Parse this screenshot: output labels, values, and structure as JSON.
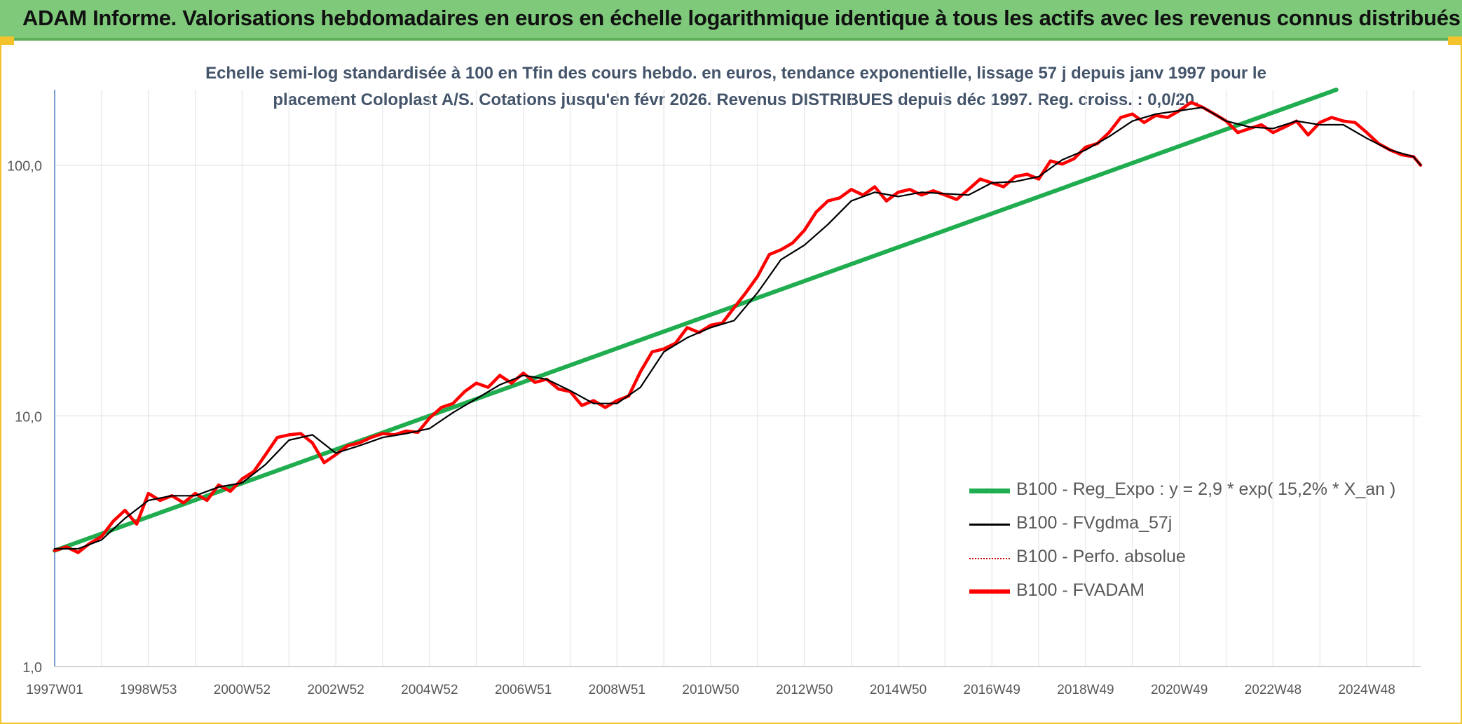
{
  "header": {
    "title": "ADAM Informe. Valorisations hebdomadaires en euros en échelle logarithmique identique à tous les actifs avec les revenus connus distribués"
  },
  "chart_data": {
    "type": "line",
    "title_lines": [
      "Echelle semi-log standardisée à 100 en Tfin des cours hebdo. en euros, tendance exponentielle, lissage 57 j depuis janv 1997 pour le",
      "placement Coloplast A/S. Cotations jusqu'en févr 2026. Revenus DISTRIBUES depuis déc 1997. Reg. croiss. : 0,0/20."
    ],
    "y_scale": "log",
    "ylim": [
      1,
      200
    ],
    "y_ticks": [
      {
        "value": 1,
        "label": "1,0"
      },
      {
        "value": 10,
        "label": "10,0"
      },
      {
        "value": 100,
        "label": "100,0"
      }
    ],
    "xlim": [
      1997.0,
      2026.15
    ],
    "x_ticks": [
      {
        "value": 1997.0,
        "label": "1997W01"
      },
      {
        "value": 1999.0,
        "label": "1998W53"
      },
      {
        "value": 2001.0,
        "label": "2000W52"
      },
      {
        "value": 2003.0,
        "label": "2002W52"
      },
      {
        "value": 2005.0,
        "label": "2004W52"
      },
      {
        "value": 2007.0,
        "label": "2006W51"
      },
      {
        "value": 2009.0,
        "label": "2008W51"
      },
      {
        "value": 2011.0,
        "label": "2010W50"
      },
      {
        "value": 2013.0,
        "label": "2012W50"
      },
      {
        "value": 2015.0,
        "label": "2014W50"
      },
      {
        "value": 2017.0,
        "label": "2016W49"
      },
      {
        "value": 2019.0,
        "label": "2018W49"
      },
      {
        "value": 2021.0,
        "label": "2020W49"
      },
      {
        "value": 2023.0,
        "label": "2022W48"
      },
      {
        "value": 2025.0,
        "label": "2024W48"
      }
    ],
    "grid": true,
    "legend_position": "bottom-right",
    "series": [
      {
        "name": "B100 - Reg_Expo : y = 2,9 * exp( 15,2% *  X_an )",
        "color": "#1fad4f",
        "style": "solid-thick",
        "x": [
          1997.0,
          2024.35
        ],
        "y": [
          2.9,
          200
        ]
      },
      {
        "name": "B100 - FVgdma_57j",
        "color": "#000000",
        "style": "solid-thin",
        "x": [
          1997.0,
          1997.5,
          1998.0,
          1998.5,
          1999.0,
          1999.5,
          2000.0,
          2000.5,
          2001.0,
          2001.5,
          2002.0,
          2002.5,
          2003.0,
          2003.5,
          2004.0,
          2004.5,
          2005.0,
          2005.5,
          2006.0,
          2006.5,
          2007.0,
          2007.5,
          2008.0,
          2008.5,
          2009.0,
          2009.5,
          2010.0,
          2010.5,
          2011.0,
          2011.5,
          2012.0,
          2012.5,
          2013.0,
          2013.5,
          2014.0,
          2014.5,
          2015.0,
          2015.5,
          2016.0,
          2016.5,
          2017.0,
          2017.5,
          2018.0,
          2018.5,
          2019.0,
          2019.5,
          2020.0,
          2020.5,
          2021.0,
          2021.5,
          2022.0,
          2022.5,
          2023.0,
          2023.5,
          2024.0,
          2024.5,
          2025.0,
          2025.5,
          2026.0,
          2026.15
        ],
        "y": [
          2.95,
          2.95,
          3.2,
          3.9,
          4.6,
          4.8,
          4.8,
          5.2,
          5.4,
          6.4,
          8.0,
          8.4,
          7.1,
          7.6,
          8.2,
          8.5,
          8.9,
          10.3,
          11.7,
          13.3,
          14.5,
          14.0,
          12.6,
          11.2,
          11.2,
          13.0,
          18.0,
          20.5,
          22.5,
          24.0,
          31.0,
          42.0,
          48.0,
          58.0,
          72.0,
          78.0,
          75.0,
          78.0,
          77.0,
          76.0,
          85.0,
          86.0,
          90.0,
          105.0,
          115.0,
          130.0,
          150.0,
          160.0,
          165.0,
          170.0,
          150.0,
          142.0,
          140.0,
          150.0,
          145.0,
          145.0,
          128.0,
          115.0,
          108.0,
          100.0
        ]
      },
      {
        "name": "B100 - Perfo. absolue",
        "color": "#c00000",
        "style": "dotted",
        "x": [],
        "y": []
      },
      {
        "name": "B100 - FVADAM",
        "color": "#ff0000",
        "style": "solid-thick",
        "x": [
          1997.0,
          1997.25,
          1997.5,
          1997.75,
          1998.0,
          1998.25,
          1998.5,
          1998.75,
          1999.0,
          1999.25,
          1999.5,
          1999.75,
          2000.0,
          2000.25,
          2000.5,
          2000.75,
          2001.0,
          2001.25,
          2001.5,
          2001.75,
          2002.0,
          2002.25,
          2002.5,
          2002.75,
          2003.0,
          2003.25,
          2003.5,
          2003.75,
          2004.0,
          2004.25,
          2004.5,
          2004.75,
          2005.0,
          2005.25,
          2005.5,
          2005.75,
          2006.0,
          2006.25,
          2006.5,
          2006.75,
          2007.0,
          2007.25,
          2007.5,
          2007.75,
          2008.0,
          2008.25,
          2008.5,
          2008.75,
          2009.0,
          2009.25,
          2009.5,
          2009.75,
          2010.0,
          2010.25,
          2010.5,
          2010.75,
          2011.0,
          2011.25,
          2011.5,
          2011.75,
          2012.0,
          2012.25,
          2012.5,
          2012.75,
          2013.0,
          2013.25,
          2013.5,
          2013.75,
          2014.0,
          2014.25,
          2014.5,
          2014.75,
          2015.0,
          2015.25,
          2015.5,
          2015.75,
          2016.0,
          2016.25,
          2016.5,
          2016.75,
          2017.0,
          2017.25,
          2017.5,
          2017.75,
          2018.0,
          2018.25,
          2018.5,
          2018.75,
          2019.0,
          2019.25,
          2019.5,
          2019.75,
          2020.0,
          2020.25,
          2020.5,
          2020.75,
          2021.0,
          2021.25,
          2021.5,
          2021.75,
          2022.0,
          2022.25,
          2022.5,
          2022.75,
          2023.0,
          2023.25,
          2023.5,
          2023.75,
          2024.0,
          2024.25,
          2024.5,
          2024.75,
          2025.0,
          2025.25,
          2025.5,
          2025.75,
          2026.0,
          2026.15
        ],
        "y": [
          2.9,
          3.0,
          2.85,
          3.1,
          3.3,
          3.8,
          4.2,
          3.7,
          4.9,
          4.6,
          4.8,
          4.5,
          4.9,
          4.6,
          5.3,
          5.0,
          5.6,
          6.0,
          7.0,
          8.2,
          8.4,
          8.5,
          7.8,
          6.5,
          7.0,
          7.6,
          7.8,
          8.2,
          8.5,
          8.4,
          8.7,
          8.6,
          9.8,
          10.8,
          11.2,
          12.5,
          13.5,
          13.0,
          14.5,
          13.5,
          14.8,
          13.6,
          14.0,
          12.8,
          12.5,
          11.0,
          11.5,
          10.8,
          11.5,
          12.0,
          15.0,
          18.0,
          18.5,
          19.5,
          22.5,
          21.5,
          23.0,
          23.5,
          27.0,
          31.0,
          36.0,
          44.0,
          46.0,
          49.0,
          55.0,
          65.0,
          72.0,
          74.0,
          80.0,
          76.0,
          82.0,
          72.0,
          78.0,
          80.0,
          76.0,
          79.0,
          76.0,
          73.0,
          80.0,
          88.0,
          85.0,
          82.0,
          90.0,
          92.0,
          88.0,
          104.0,
          101.0,
          106.0,
          118.0,
          122.0,
          135.0,
          155.0,
          160.0,
          148.0,
          158.0,
          155.0,
          165.0,
          178.0,
          170.0,
          160.0,
          150.0,
          135.0,
          140.0,
          145.0,
          135.0,
          142.0,
          150.0,
          132.0,
          148.0,
          155.0,
          150.0,
          148.0,
          135.0,
          122.0,
          115.0,
          110.0,
          108.0,
          100.0
        ]
      }
    ]
  }
}
